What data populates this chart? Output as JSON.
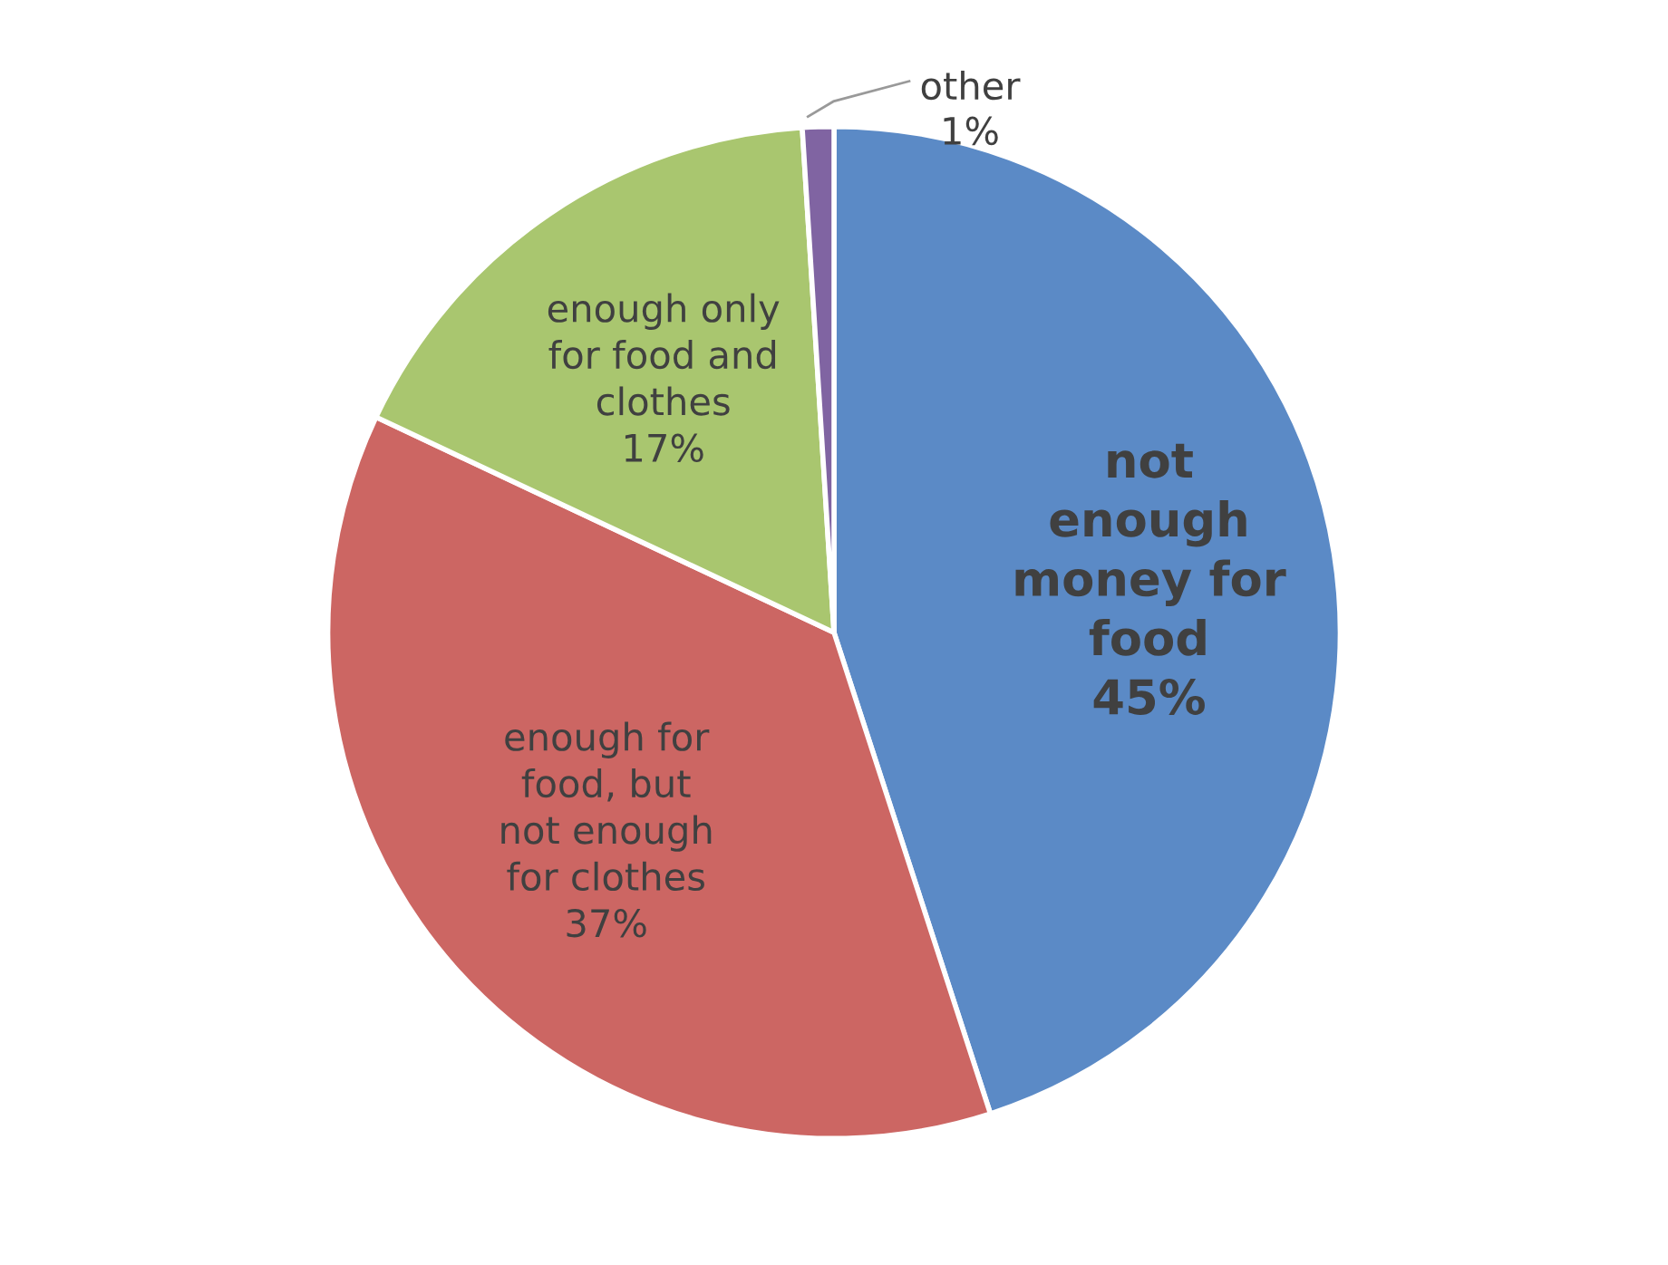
{
  "chart_data": {
    "type": "pie",
    "categories": [
      "not\nenough\nmoney for\nfood",
      "enough for\nfood, but\nnot enough\nfor clothes",
      "enough only\nfor food and\nclothes",
      "other"
    ],
    "values": [
      45,
      37,
      17,
      1
    ],
    "colors": [
      "#5b8ac6",
      "#cc6663",
      "#a9c66f",
      "#8064a2"
    ],
    "value_labels": [
      "45%",
      "37%",
      "17%",
      "1%"
    ]
  }
}
